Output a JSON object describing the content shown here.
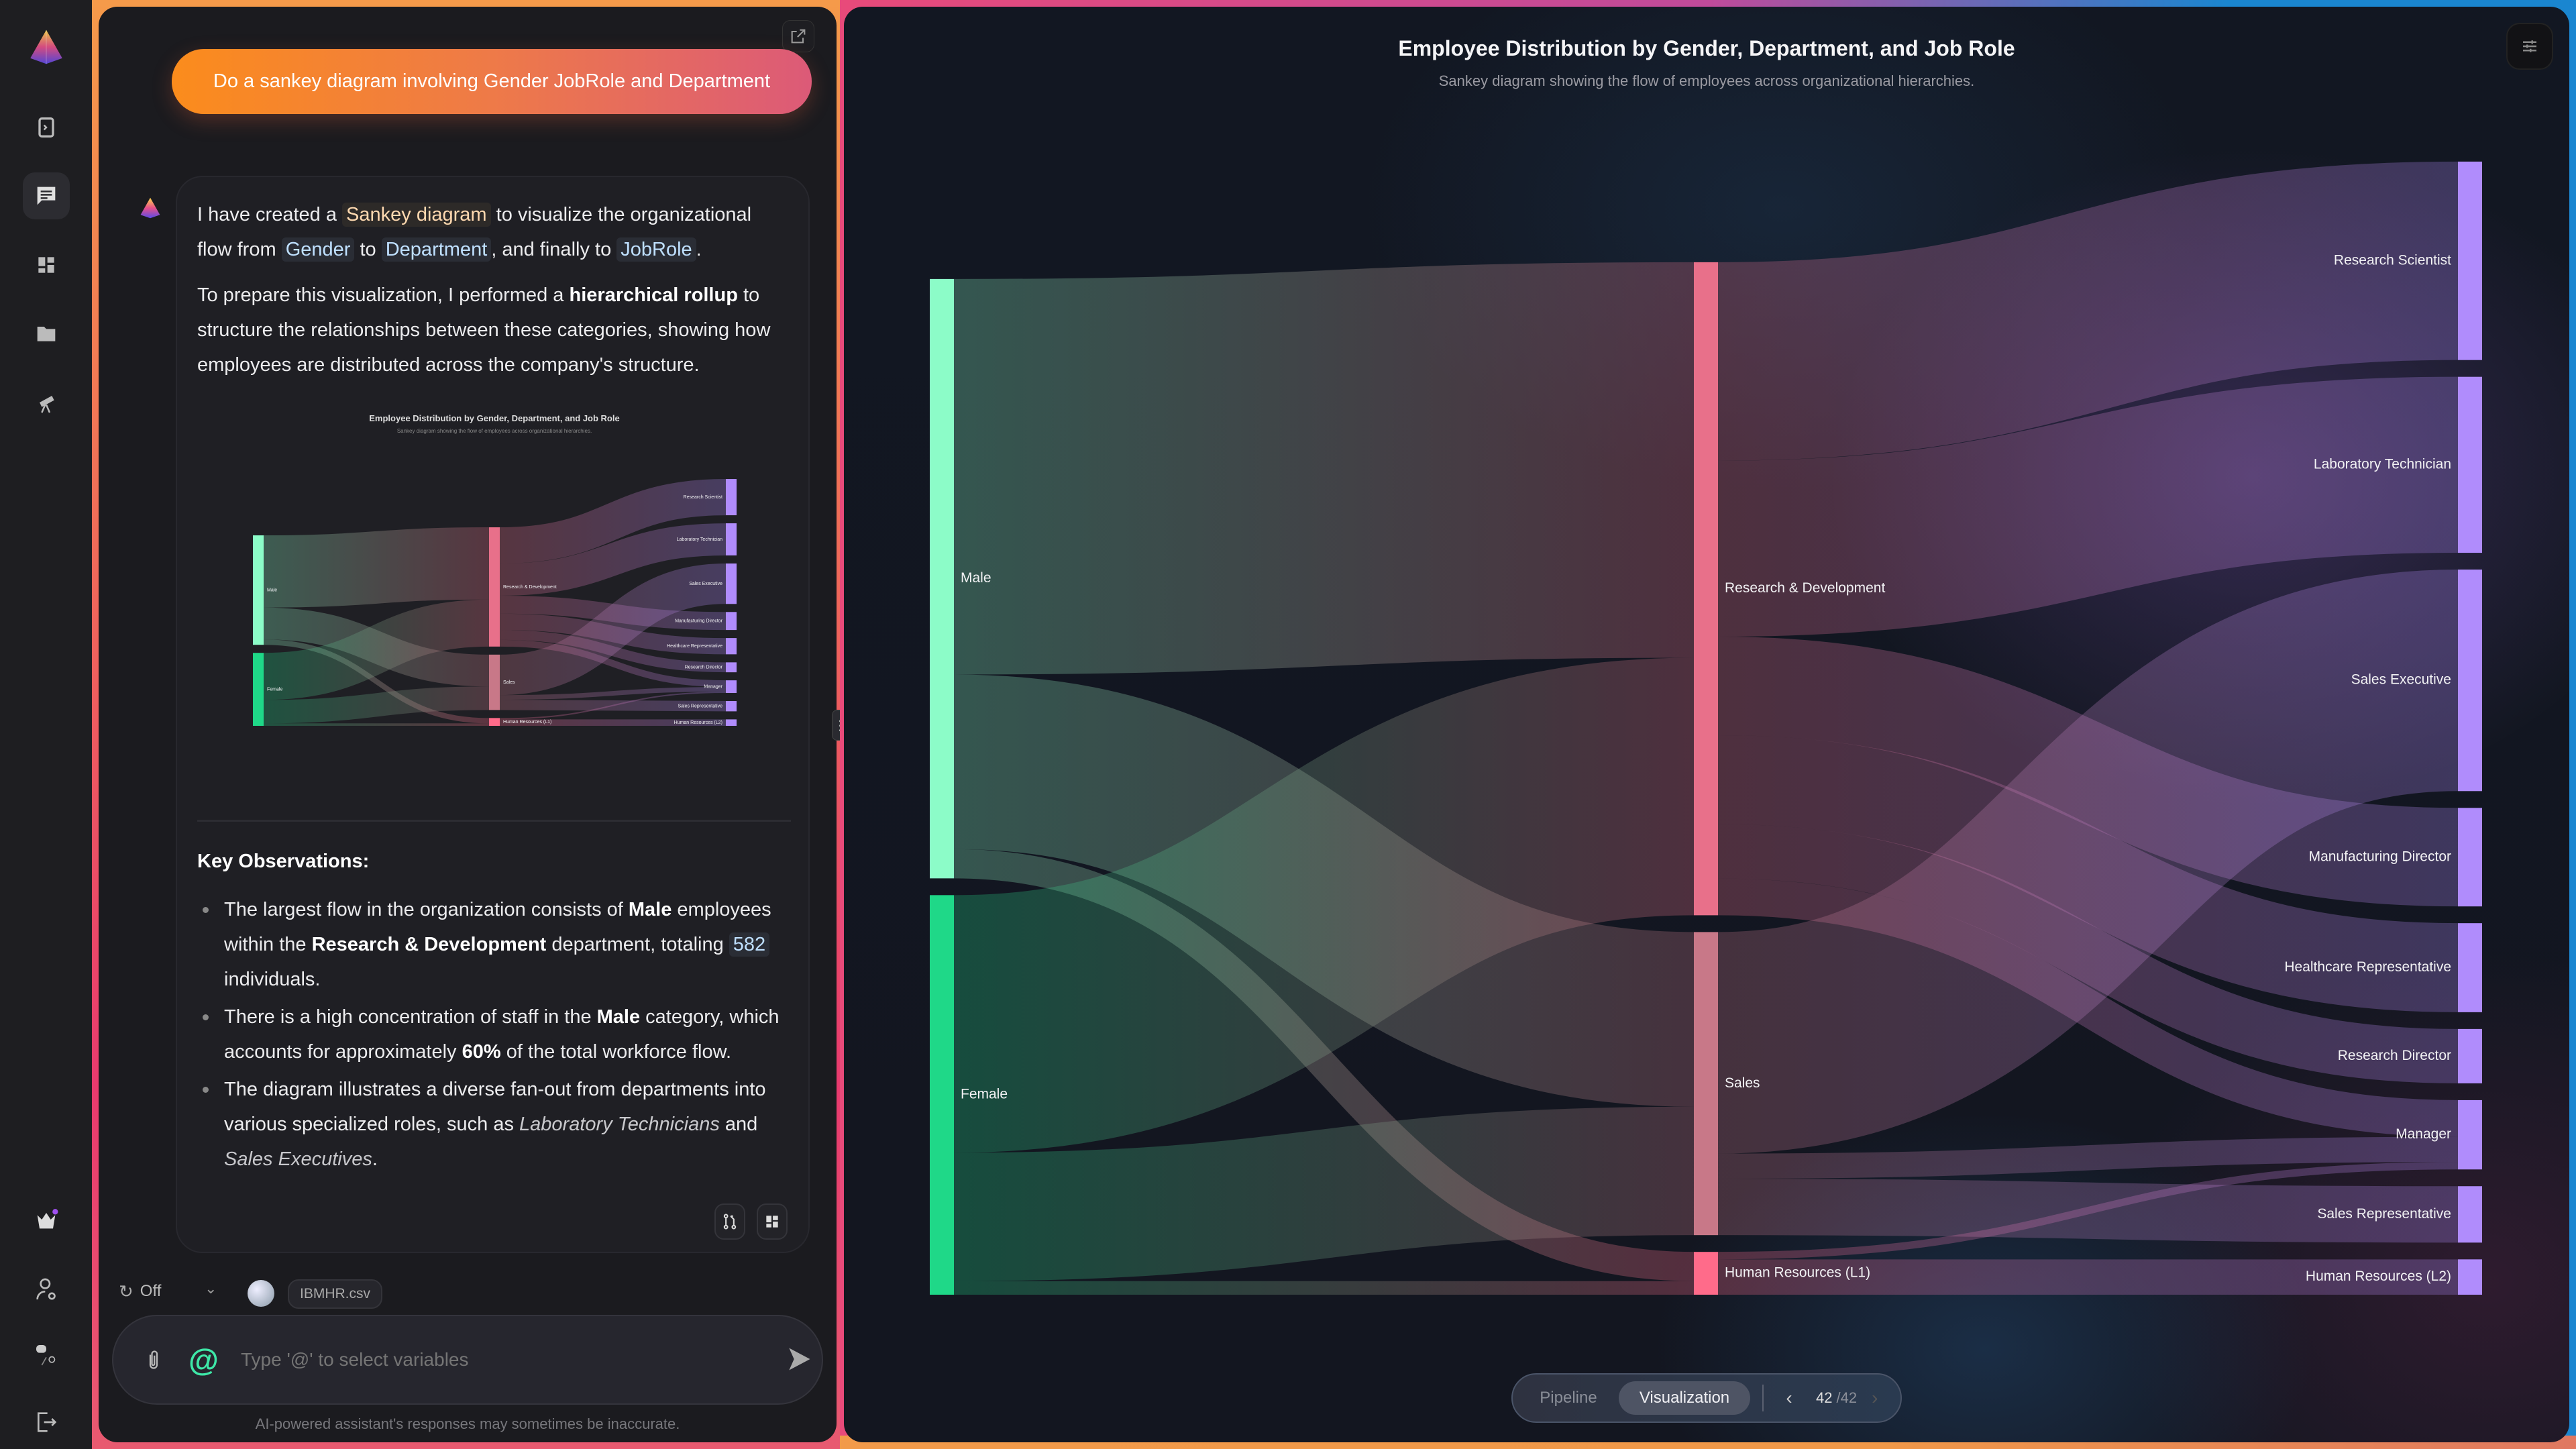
{
  "sidebar": {
    "items": [
      {
        "name": "logo-icon"
      },
      {
        "name": "panel-toggle-icon"
      },
      {
        "name": "chat-icon",
        "active": true
      },
      {
        "name": "dashboard-icon"
      },
      {
        "name": "folder-icon"
      },
      {
        "name": "telescope-icon"
      },
      {
        "name": "crown-icon"
      },
      {
        "name": "user-settings-icon"
      },
      {
        "name": "discord-icon"
      },
      {
        "name": "logout-icon"
      }
    ]
  },
  "chat": {
    "user_message": "Do a sankey diagram involving Gender JobRole and Department",
    "assistant": {
      "paragraph1": [
        {
          "t": "I have created a "
        },
        {
          "t": "Sankey diagram",
          "s": "chip-orange"
        },
        {
          "t": " to visualize the organizational flow from "
        },
        {
          "t": "Gender",
          "s": "chip"
        },
        {
          "t": " to "
        },
        {
          "t": "Department",
          "s": "chip"
        },
        {
          "t": ", and finally to "
        },
        {
          "t": "JobRole",
          "s": "chip"
        },
        {
          "t": "."
        }
      ],
      "paragraph2": [
        {
          "t": "To prepare this visualization, I performed a "
        },
        {
          "t": "hierarchical rollup",
          "s": "b"
        },
        {
          "t": " to structure the relationships between these categories, showing how employees are distributed across the company's structure."
        }
      ],
      "observations_heading": "Key Observations:",
      "observations": [
        [
          {
            "t": "The largest flow in the organization consists of "
          },
          {
            "t": "Male",
            "s": "b"
          },
          {
            "t": " employees within the "
          },
          {
            "t": "Research & Development",
            "s": "b"
          },
          {
            "t": " department, totaling "
          },
          {
            "t": "582",
            "s": "chip"
          },
          {
            "t": " individuals."
          }
        ],
        [
          {
            "t": "There is a high concentration of staff in the "
          },
          {
            "t": "Male",
            "s": "b"
          },
          {
            "t": " category, which accounts for approximately "
          },
          {
            "t": "60%",
            "s": "b"
          },
          {
            "t": " of the total workforce flow."
          }
        ],
        [
          {
            "t": "The diagram illustrates a diverse fan-out from departments into various specialized roles, such as "
          },
          {
            "t": "Laboratory Technicians",
            "s": "i"
          },
          {
            "t": " and "
          },
          {
            "t": "Sales Executives",
            "s": "i"
          },
          {
            "t": "."
          }
        ]
      ]
    },
    "controls": {
      "reasoning_label": "Off",
      "dataset_chip": "IBMHR.csv"
    },
    "input": {
      "placeholder": "Type '@' to select variables",
      "value": ""
    },
    "disclaimer": "AI-powered assistant's responses may sometimes be inaccurate."
  },
  "chart_panel": {
    "view_toggle": {
      "options": [
        "Pipeline",
        "Visualization"
      ],
      "selected": "Visualization"
    },
    "pagination": {
      "current": "42",
      "total": "/42"
    }
  },
  "chart_data": {
    "type": "sankey",
    "title": "Employee Distribution by Gender, Department, and Job Role",
    "subtitle": "Sankey diagram showing the flow of employees across organizational hierarchies.",
    "nodes": [
      {
        "id": "Male",
        "label": "Male",
        "column": 0,
        "color": "#8cfcc8"
      },
      {
        "id": "Female",
        "label": "Female",
        "column": 0,
        "color": "#1fd888"
      },
      {
        "id": "RD",
        "label": "Research & Development",
        "column": 1,
        "color": "#e8708a"
      },
      {
        "id": "Sales",
        "label": "Sales",
        "column": 1,
        "color": "#c87888"
      },
      {
        "id": "HR1",
        "label": "Human Resources (L1)",
        "column": 1,
        "color": "#ff6b8a"
      },
      {
        "id": "RS",
        "label": "Research Scientist",
        "column": 2,
        "color": "#b08cfc"
      },
      {
        "id": "LT",
        "label": "Laboratory Technician",
        "column": 2,
        "color": "#b08cfc"
      },
      {
        "id": "SE",
        "label": "Sales Executive",
        "column": 2,
        "color": "#b08cfc"
      },
      {
        "id": "MD",
        "label": "Manufacturing Director",
        "column": 2,
        "color": "#b08cfc"
      },
      {
        "id": "HC",
        "label": "Healthcare Representative",
        "column": 2,
        "color": "#b08cfc"
      },
      {
        "id": "RDir",
        "label": "Research Director",
        "column": 2,
        "color": "#b08cfc"
      },
      {
        "id": "Mgr",
        "label": "Manager",
        "column": 2,
        "color": "#b08cfc"
      },
      {
        "id": "SR",
        "label": "Sales Representative",
        "column": 2,
        "color": "#b08cfc"
      },
      {
        "id": "HR2",
        "label": "Human Resources (L2)",
        "column": 2,
        "color": "#b08cfc"
      }
    ],
    "links": [
      {
        "source": "Male",
        "target": "RD",
        "value": 582
      },
      {
        "source": "Male",
        "target": "Sales",
        "value": 257
      },
      {
        "source": "Male",
        "target": "HR1",
        "value": 43
      },
      {
        "source": "Female",
        "target": "RD",
        "value": 379
      },
      {
        "source": "Female",
        "target": "Sales",
        "value": 189
      },
      {
        "source": "Female",
        "target": "HR1",
        "value": 20
      },
      {
        "source": "RD",
        "target": "RS",
        "value": 292
      },
      {
        "source": "RD",
        "target": "LT",
        "value": 259
      },
      {
        "source": "RD",
        "target": "MD",
        "value": 145
      },
      {
        "source": "RD",
        "target": "HC",
        "value": 131
      },
      {
        "source": "RD",
        "target": "RDir",
        "value": 80
      },
      {
        "source": "RD",
        "target": "Mgr",
        "value": 54
      },
      {
        "source": "Sales",
        "target": "SE",
        "value": 326
      },
      {
        "source": "Sales",
        "target": "Mgr",
        "value": 37
      },
      {
        "source": "Sales",
        "target": "SR",
        "value": 83
      },
      {
        "source": "HR1",
        "target": "Mgr",
        "value": 11
      },
      {
        "source": "HR1",
        "target": "HR2",
        "value": 52
      }
    ]
  }
}
